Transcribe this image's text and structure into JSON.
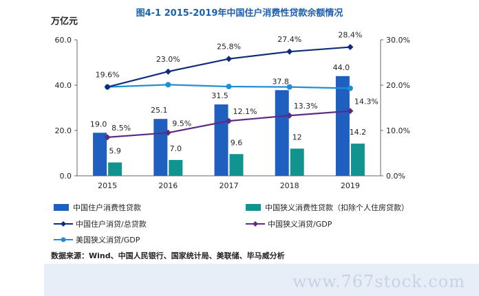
{
  "title": "图4-1 2015-2019年中国住户消费性贷款余额情况",
  "unit_label": "万亿元",
  "source": "数据来源：Wind、中国人民银行、国家统计局、美联储、毕马威分析",
  "watermark": "www.767stock.com",
  "colors": {
    "bar_total": "#1f5fbf",
    "bar_narrow": "#11938f",
    "line_total_ratio": "#0d2d7a",
    "line_cn_gdp": "#5a2d82",
    "line_us_gdp": "#1e8fd6",
    "title": "#1b5fae",
    "note_box": "#e8eef8"
  },
  "chart_data": {
    "type": "bar",
    "categories": [
      "2015",
      "2016",
      "2017",
      "2018",
      "2019"
    ],
    "left_axis": {
      "ylim": [
        0,
        60
      ],
      "ticks": [
        "0.0",
        "20.0",
        "40.0",
        "60.0"
      ]
    },
    "right_axis": {
      "ylim": [
        0,
        30
      ],
      "ticks": [
        "0.0%",
        "10.0%",
        "20.0%",
        "30.0%"
      ]
    },
    "series": [
      {
        "name": "中国住户消费性贷款",
        "kind": "bar",
        "axis": "left",
        "values": [
          19.0,
          25.1,
          31.5,
          37.8,
          44.0
        ],
        "labels": [
          "19.0",
          "25.1",
          "31.5",
          "37.8",
          "44.0"
        ]
      },
      {
        "name": "中国狭义消费性贷款（扣除个人住房贷款）",
        "kind": "bar",
        "axis": "left",
        "values": [
          5.9,
          7.0,
          9.6,
          12,
          14.2
        ],
        "labels": [
          "5.9",
          "7.0",
          "9.6",
          "12",
          "14.2"
        ]
      },
      {
        "name": "中国住户消贷/总贷款",
        "kind": "line",
        "marker": "diamond",
        "axis": "right",
        "values": [
          19.6,
          23.0,
          25.8,
          27.4,
          28.4
        ],
        "labels": [
          "19.6%",
          "23.0%",
          "25.8%",
          "27.4%",
          "28.4%"
        ]
      },
      {
        "name": "中国狭义消贷/GDP",
        "kind": "line",
        "marker": "diamond",
        "axis": "right",
        "values": [
          8.5,
          9.5,
          12.1,
          13.3,
          14.3
        ],
        "labels": [
          "8.5%",
          "9.5%",
          "12.1%",
          "13.3%",
          "14.3%"
        ]
      },
      {
        "name": "美国狭义消贷/GDP",
        "kind": "line",
        "marker": "circle",
        "axis": "right",
        "values": [
          19.6,
          20.1,
          19.7,
          19.6,
          19.3
        ],
        "labels": []
      }
    ],
    "legend_position": "bottom",
    "grid": false
  }
}
